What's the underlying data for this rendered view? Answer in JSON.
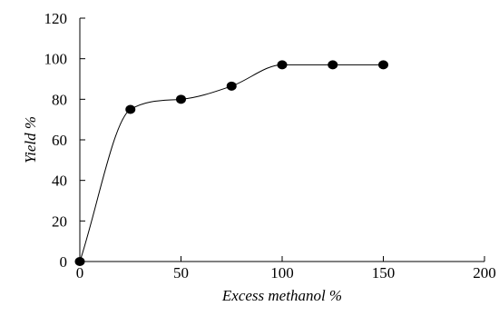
{
  "chart_data": {
    "type": "scatter",
    "title": "",
    "xlabel": "Excess methanol %",
    "ylabel": "Yield %",
    "xlim": [
      0,
      200
    ],
    "ylim": [
      0,
      120
    ],
    "x_ticks": [
      0,
      50,
      100,
      150,
      200
    ],
    "y_ticks": [
      0,
      20,
      40,
      60,
      80,
      100,
      120
    ],
    "x_tick_labels": [
      "0",
      "50",
      "100",
      "150",
      "200"
    ],
    "y_tick_labels": [
      "0",
      "20",
      "40",
      "60",
      "80",
      "100",
      "120"
    ],
    "grid": false,
    "legend": "none",
    "series": [
      {
        "x": [
          0,
          25,
          50,
          75,
          100,
          125,
          150
        ],
        "y": [
          0,
          75,
          80,
          86.5,
          97,
          97,
          97
        ],
        "line": "smoothed",
        "marker": "filled-circle",
        "color": "#000000"
      }
    ]
  }
}
